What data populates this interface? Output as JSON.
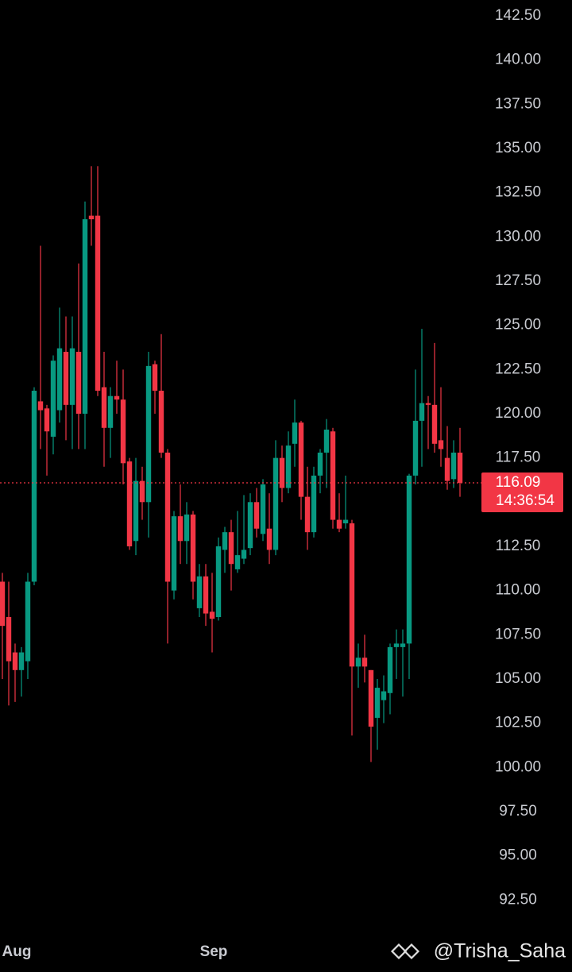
{
  "chart_data": {
    "type": "candlestick",
    "up_color": "#089981",
    "down_color": "#f23645",
    "last_price": 116.09,
    "countdown": "14:36:54",
    "watermark": "@Trisha_Saha",
    "ylim": [
      90.4,
      143.4
    ],
    "yticks": [
      {
        "value": 92.5,
        "label": "92.50"
      },
      {
        "value": 95,
        "label": "95.00"
      },
      {
        "value": 97.5,
        "label": "97.50"
      },
      {
        "value": 100,
        "label": "100.00"
      },
      {
        "value": 102.5,
        "label": "102.50"
      },
      {
        "value": 105,
        "label": "105.00"
      },
      {
        "value": 107.5,
        "label": "107.50"
      },
      {
        "value": 110,
        "label": "110.00"
      },
      {
        "value": 112.5,
        "label": "112.50"
      },
      {
        "value": 115,
        "label": "115.00"
      },
      {
        "value": 117.5,
        "label": "117.50"
      },
      {
        "value": 120,
        "label": "120.00"
      },
      {
        "value": 122.5,
        "label": "122.50"
      },
      {
        "value": 125,
        "label": "125.00"
      },
      {
        "value": 127.5,
        "label": "127.50"
      },
      {
        "value": 130,
        "label": "130.00"
      },
      {
        "value": 132.5,
        "label": "132.50"
      },
      {
        "value": 135,
        "label": "135.00"
      },
      {
        "value": 137.5,
        "label": "137.50"
      },
      {
        "value": 140,
        "label": "140.00"
      },
      {
        "value": 142.5,
        "label": "142.50"
      }
    ],
    "categories": [
      null,
      null,
      "Aug",
      null,
      null,
      null,
      null,
      null,
      null,
      null,
      null,
      null,
      null,
      null,
      null,
      null,
      null,
      null,
      null,
      null,
      null,
      null,
      null,
      null,
      null,
      null,
      null,
      null,
      null,
      null,
      null,
      null,
      null,
      "Sep",
      null,
      null,
      null,
      null,
      null,
      null,
      null,
      null,
      null,
      null,
      null,
      null,
      null,
      null,
      null,
      null,
      null,
      null,
      null,
      null,
      null,
      null,
      null,
      null,
      null,
      null,
      null,
      null,
      null,
      null,
      null,
      null,
      null,
      null,
      null,
      null,
      null,
      null,
      null
    ],
    "open": [
      110.5,
      108.5,
      106.5,
      105.5,
      106,
      110.5,
      120.7,
      120.3,
      118.7,
      120.2,
      123.5,
      120.5,
      123.5,
      120,
      131.2,
      131.2,
      121.5,
      119.2,
      121,
      120.8,
      117.3,
      112.8,
      116.2,
      115,
      122.8,
      121.3,
      117.8,
      110,
      114.2,
      112.8,
      114.3,
      109,
      110.8,
      108.8,
      108.5,
      112.3,
      113.3,
      111.2,
      111.8,
      112.4,
      115,
      113.2,
      113.5,
      112.3,
      117.5,
      115.8,
      118.3,
      119.5,
      115.3,
      113.3,
      116.5,
      117.8,
      119,
      114,
      113.8,
      113.8,
      105.7,
      106.2,
      105.5,
      102.8,
      103.8,
      104.2,
      106.8,
      106.8,
      107,
      116.5,
      119.6,
      120.6,
      120.5,
      118.5,
      117.5,
      116.3,
      117.8
    ],
    "high": [
      111,
      110.5,
      107,
      106.8,
      111,
      121.5,
      129.5,
      120.5,
      123.3,
      126,
      125.5,
      125.5,
      128.5,
      132,
      134,
      134,
      123.5,
      121.5,
      123,
      122.5,
      117.5,
      117.5,
      117,
      123.5,
      123,
      124.5,
      118,
      114.5,
      116,
      115,
      114.5,
      111.5,
      111.5,
      111,
      113,
      113.6,
      114,
      114.5,
      115.4,
      115.5,
      115.8,
      116.3,
      115.5,
      118.5,
      118.2,
      119,
      120.8,
      119.6,
      117,
      117,
      118,
      119.7,
      119.2,
      115.5,
      116.5,
      114,
      107,
      107.5,
      105.5,
      105,
      105.2,
      107,
      107.8,
      107.8,
      116.6,
      122.5,
      124.8,
      121,
      124,
      121.5,
      119.3,
      118.5,
      119.2
    ],
    "low": [
      105,
      103.5,
      103.7,
      104,
      105,
      110.3,
      118,
      116.5,
      117.7,
      119.5,
      118.5,
      118,
      118,
      118,
      129.5,
      121,
      117,
      117.5,
      120,
      116,
      112.3,
      112,
      114,
      113,
      120,
      117.5,
      107,
      109.5,
      111.5,
      111.5,
      109.5,
      108.5,
      108,
      106.5,
      108.3,
      111,
      110,
      111,
      111.5,
      112,
      113,
      112.8,
      111.5,
      112,
      115,
      115.5,
      117,
      114,
      112.3,
      113,
      115.5,
      115.8,
      113.5,
      113.3,
      113.5,
      101.8,
      104.5,
      104.8,
      100.3,
      101,
      102.5,
      103,
      105,
      104,
      105,
      116,
      117,
      118,
      117.8,
      117,
      115.7,
      115.8,
      115.3
    ],
    "close": [
      108,
      106,
      105.5,
      106.5,
      110.5,
      121.3,
      120.2,
      119,
      123,
      123.7,
      120.5,
      123.7,
      120,
      131,
      131,
      121.3,
      119.2,
      121,
      120.8,
      117.2,
      112.5,
      116.2,
      115,
      122.7,
      121.3,
      117.8,
      110.5,
      114.2,
      112.8,
      114.3,
      110.5,
      110.8,
      108.7,
      108.4,
      112.5,
      113.3,
      111.5,
      112,
      112.3,
      115,
      113.5,
      116,
      112.3,
      117.5,
      115.8,
      118.2,
      119.5,
      115.3,
      113.3,
      116.5,
      117.8,
      119.1,
      114,
      113.5,
      114,
      105.7,
      106.2,
      105.7,
      102.3,
      104.5,
      104.3,
      106.8,
      107,
      107,
      116.5,
      119.6,
      120.6,
      120.5,
      118.3,
      118,
      116.2,
      117.8,
      116.09
    ]
  }
}
